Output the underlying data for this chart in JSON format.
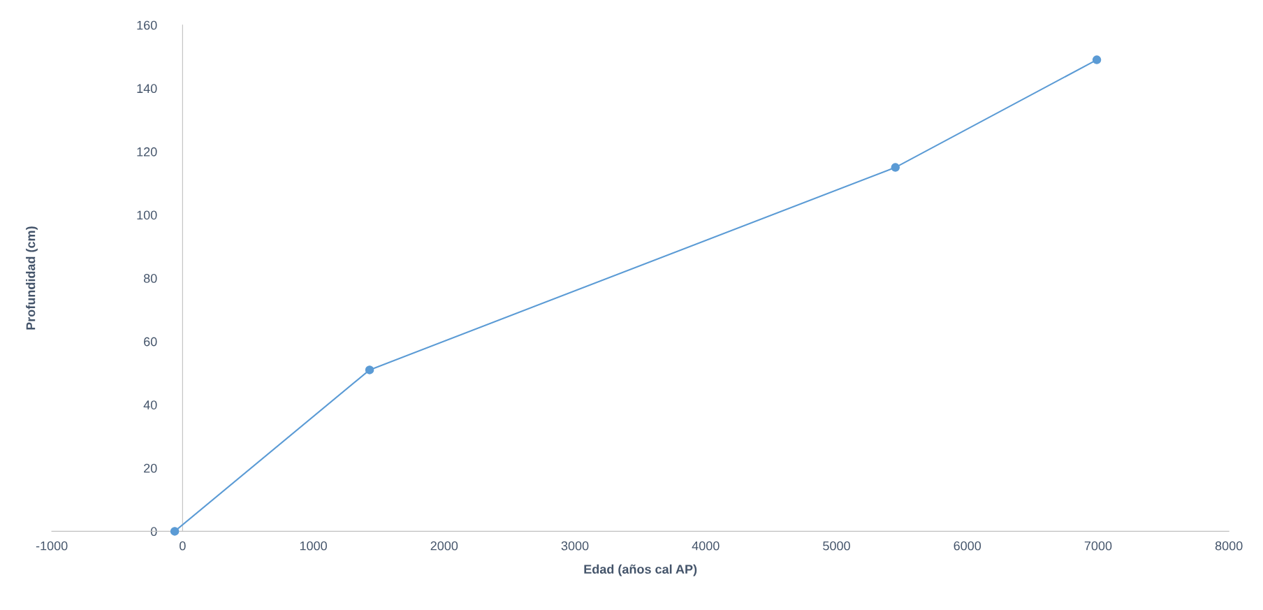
{
  "chart_data": {
    "type": "line",
    "xlabel": "Edad (años cal AP)",
    "ylabel": "Profundidad (cm)",
    "x": [
      -60,
      1430,
      5450,
      6990
    ],
    "series": [
      {
        "color": "#5b9bd5",
        "values": [
          0,
          51,
          115,
          149
        ]
      }
    ],
    "xlim": [
      -1000,
      8000
    ],
    "xticks": [
      -1000,
      0,
      1000,
      2000,
      3000,
      4000,
      5000,
      6000,
      7000,
      8000
    ],
    "ylim": [
      0,
      160
    ],
    "yticks": [
      0,
      20,
      40,
      60,
      80,
      100,
      120,
      140,
      160
    ],
    "grid": false,
    "legend": false,
    "marker": "circle",
    "line_style": "solid"
  }
}
